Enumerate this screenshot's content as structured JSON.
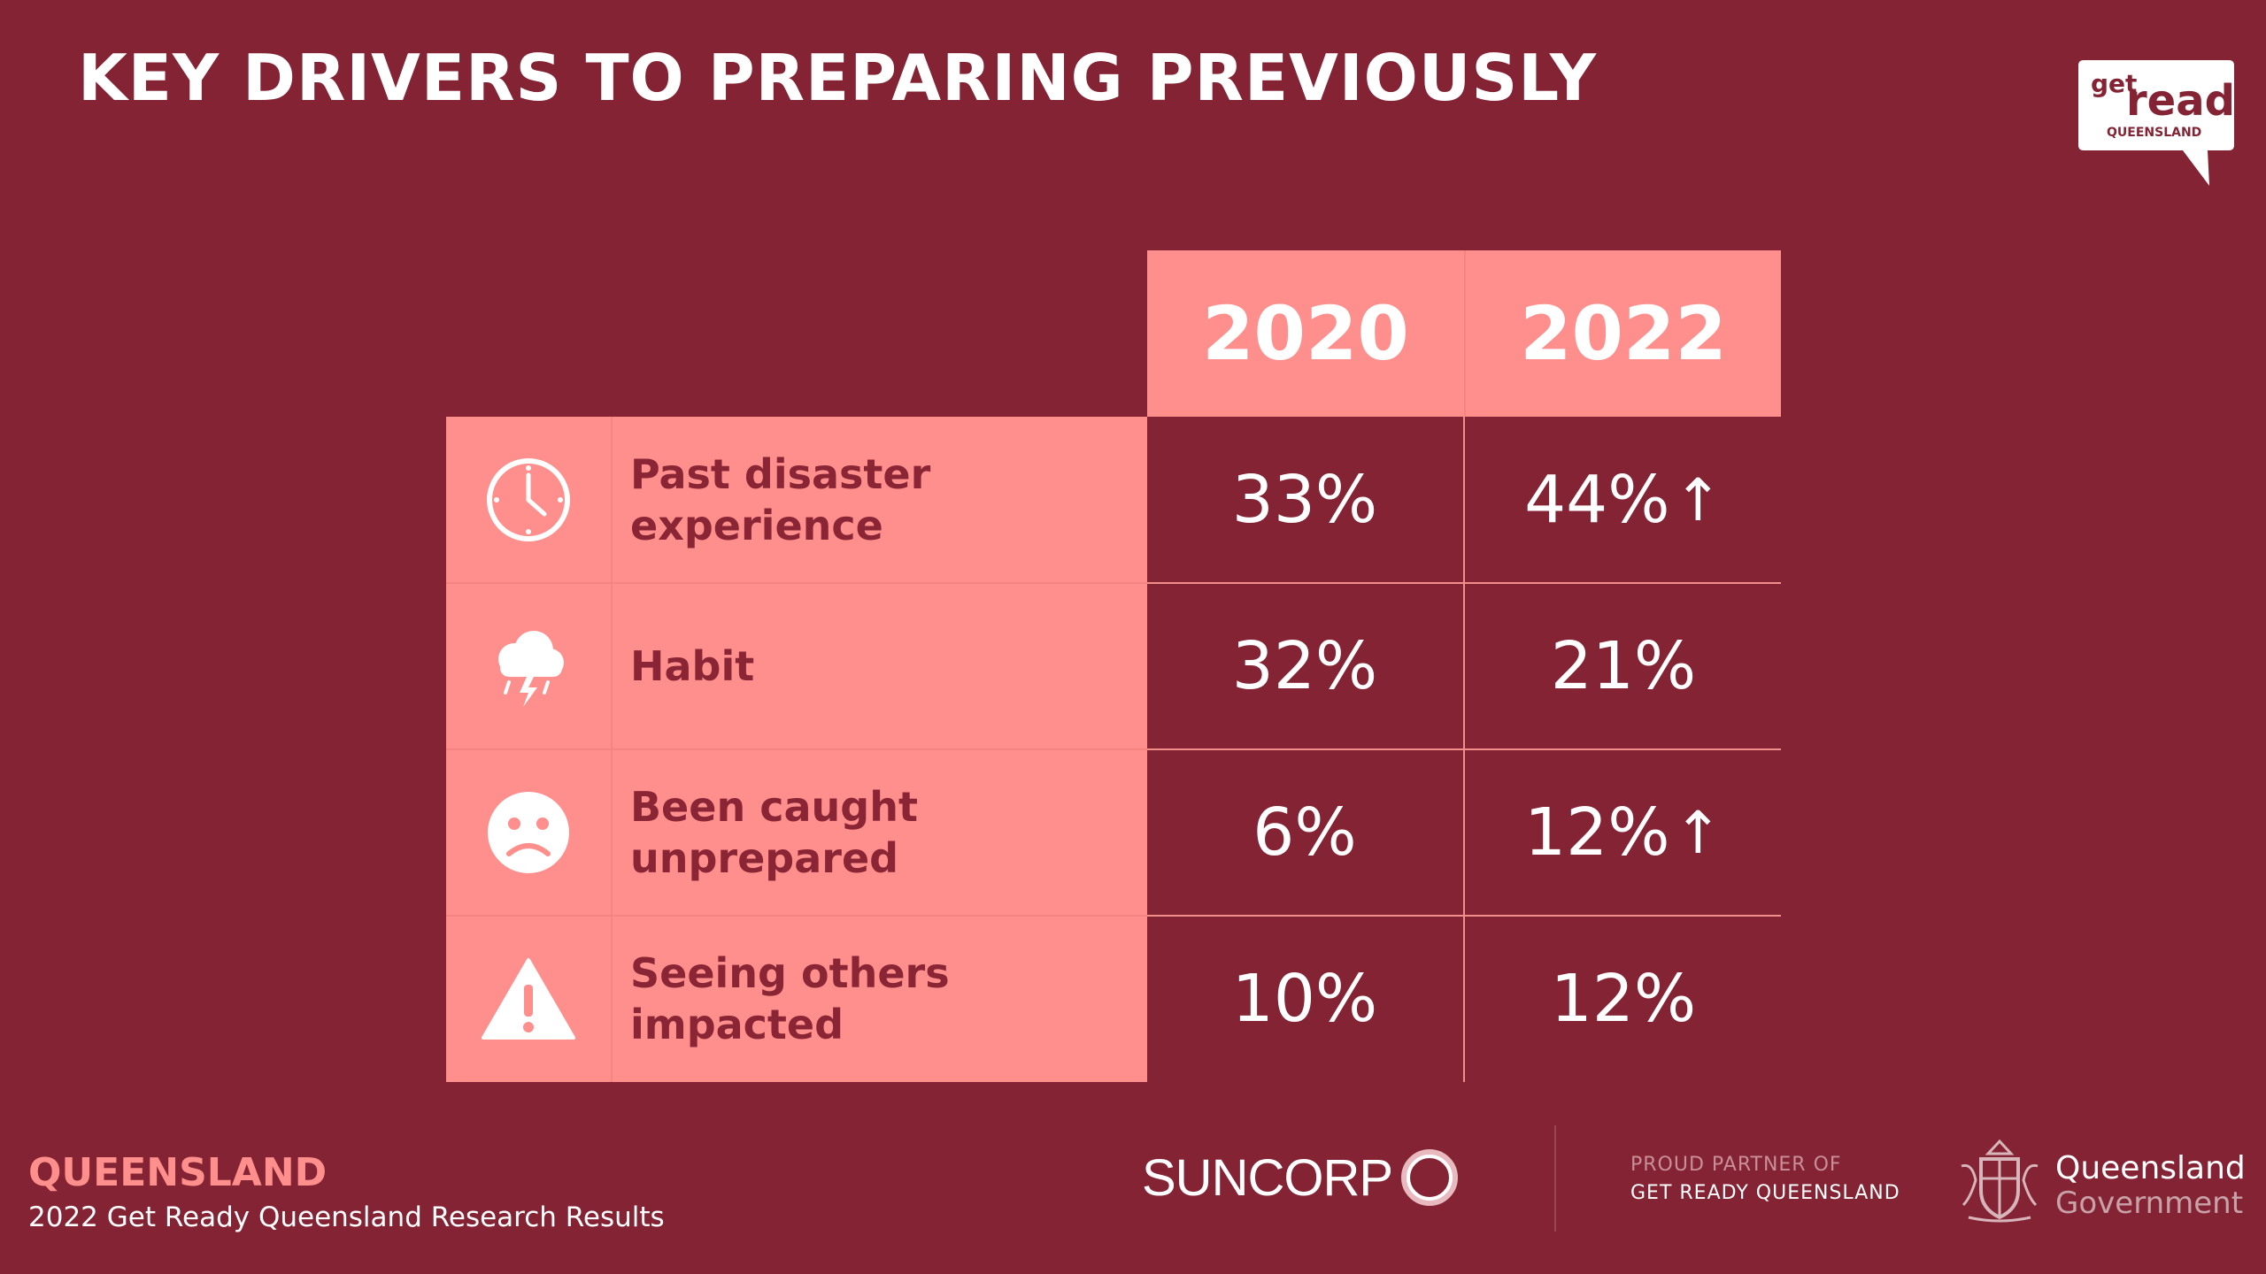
{
  "slide": {
    "title": "KEY DRIVERS TO PREPARING PREVIOUSLY"
  },
  "logo": {
    "line1": "get",
    "line2": "ready",
    "line3": "QUEENSLAND"
  },
  "table": {
    "years": [
      "2020",
      "2022"
    ],
    "rows": [
      {
        "icon": "clock-icon",
        "label": "Past disaster experience",
        "v2020": "33%",
        "v2022": "44%",
        "trend2022": "↑"
      },
      {
        "icon": "storm-cloud-icon",
        "label": "Habit",
        "v2020": "32%",
        "v2022": "21%",
        "trend2022": ""
      },
      {
        "icon": "sad-face-icon",
        "label": "Been caught unprepared",
        "v2020": "6%",
        "v2022": "12%",
        "trend2022": "↑"
      },
      {
        "icon": "warning-icon",
        "label": "Seeing others impacted",
        "v2020": "10%",
        "v2022": "12%",
        "trend2022": ""
      }
    ]
  },
  "footer": {
    "brand": "QUEENSLAND",
    "subtitle": "2022 Get Ready Queensland Research Results",
    "sponsor": "SUNCORP",
    "partner_line1": "PROUD PARTNER OF",
    "partner_line2": "GET READY QUEENSLAND",
    "gov_line1": "Queensland",
    "gov_line2": "Government"
  },
  "colors": {
    "background": "#842333",
    "accent": "#ff8f8c",
    "label_text": "#8a2535"
  }
}
